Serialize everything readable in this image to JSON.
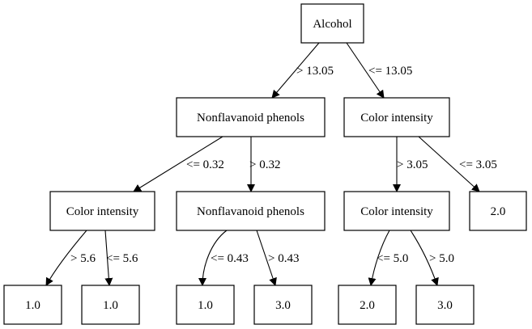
{
  "tree": {
    "nodes": [
      {
        "id": "n0",
        "label": "Alcohol"
      },
      {
        "id": "n1",
        "label": "Nonflavanoid phenols"
      },
      {
        "id": "n2",
        "label": "Color intensity"
      },
      {
        "id": "n3",
        "label": "Color intensity"
      },
      {
        "id": "n4",
        "label": "Nonflavanoid phenols"
      },
      {
        "id": "n5",
        "label": "Color intensity"
      },
      {
        "id": "n6",
        "label": "2.0"
      },
      {
        "id": "n7",
        "label": "1.0"
      },
      {
        "id": "n8",
        "label": "1.0"
      },
      {
        "id": "n9",
        "label": "1.0"
      },
      {
        "id": "n10",
        "label": "3.0"
      },
      {
        "id": "n11",
        "label": "2.0"
      },
      {
        "id": "n12",
        "label": "3.0"
      }
    ],
    "edges": [
      {
        "from": "n0",
        "to": "n1",
        "label": "> 13.05"
      },
      {
        "from": "n0",
        "to": "n2",
        "label": "<= 13.05"
      },
      {
        "from": "n1",
        "to": "n3",
        "label": "<= 0.32"
      },
      {
        "from": "n1",
        "to": "n4",
        "label": "> 0.32"
      },
      {
        "from": "n2",
        "to": "n5",
        "label": "> 3.05"
      },
      {
        "from": "n2",
        "to": "n6",
        "label": "<= 3.05"
      },
      {
        "from": "n3",
        "to": "n7",
        "label": "> 5.6"
      },
      {
        "from": "n3",
        "to": "n8",
        "label": "<= 5.6"
      },
      {
        "from": "n4",
        "to": "n9",
        "label": "<= 0.43"
      },
      {
        "from": "n4",
        "to": "n10",
        "label": "> 0.43"
      },
      {
        "from": "n5",
        "to": "n11",
        "label": "<= 5.0"
      },
      {
        "from": "n5",
        "to": "n12",
        "label": "> 5.0"
      }
    ]
  }
}
